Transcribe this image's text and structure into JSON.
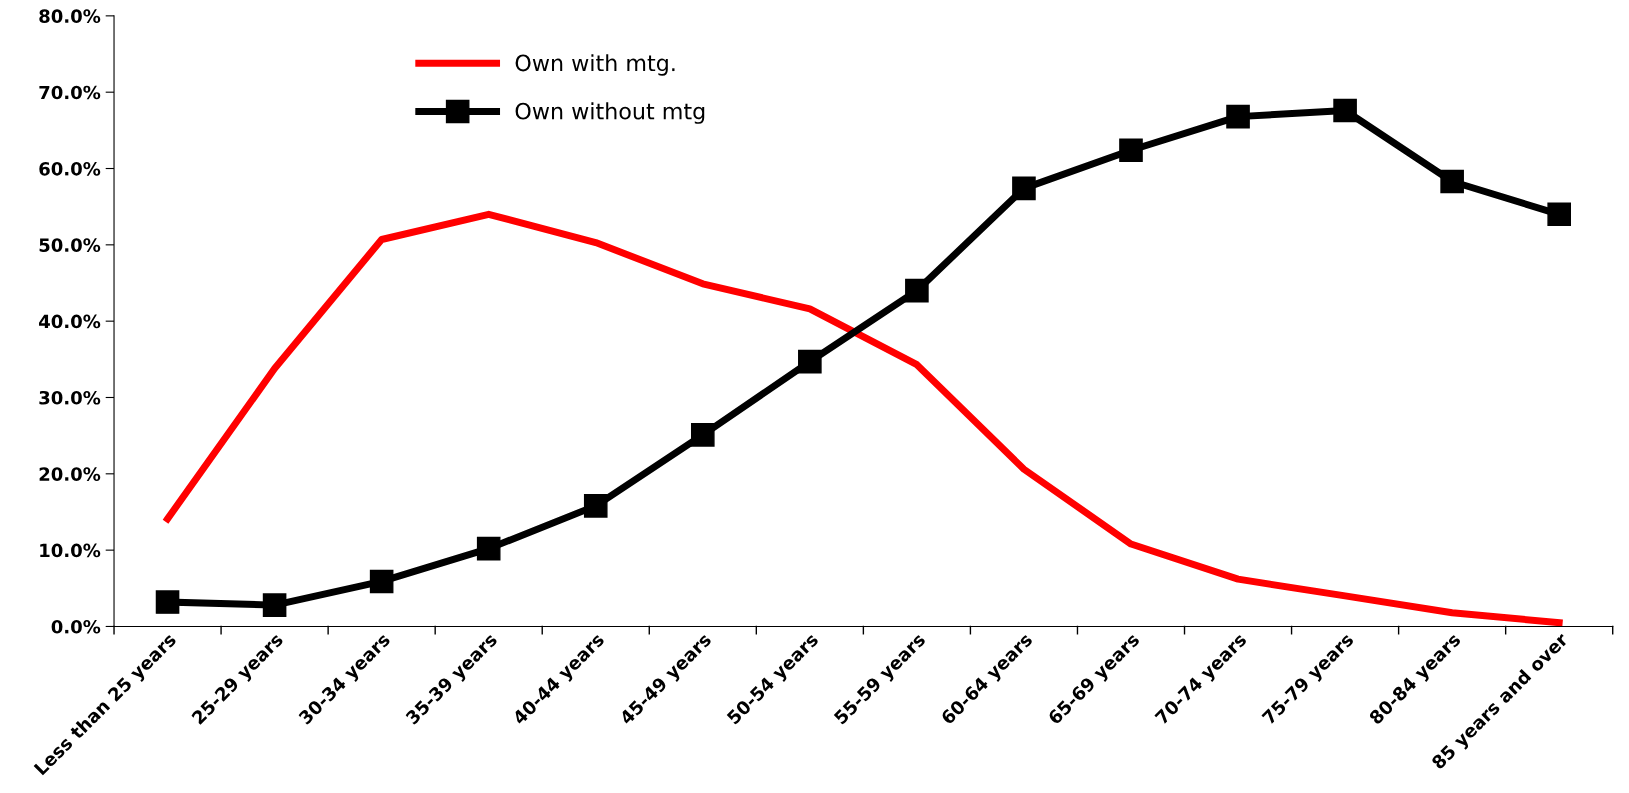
{
  "chart_data": {
    "type": "line",
    "categories": [
      "Less than 25 years",
      "25-29 years",
      "30-34 years",
      "35-39 years",
      "40-44 years",
      "45-49 years",
      "50-54 years",
      "55-59 years",
      "60-64 years",
      "65-69 years",
      "70-74 years",
      "75-79 years",
      "80-84 years",
      "85 years and over"
    ],
    "series": [
      {
        "name": "Own with mtg.",
        "color": "#ff0000",
        "marker": "none",
        "values": [
          14.1,
          33.8,
          50.7,
          54.0,
          50.3,
          44.9,
          41.6,
          34.3,
          20.6,
          10.8,
          6.2,
          4.0,
          1.8,
          0.5
        ]
      },
      {
        "name": "Own without mtg",
        "color": "#000000",
        "marker": "square",
        "values": [
          3.2,
          2.8,
          5.9,
          10.2,
          15.8,
          25.1,
          34.7,
          44.0,
          57.4,
          62.4,
          66.8,
          67.6,
          58.3,
          54.0
        ]
      }
    ],
    "ylim": [
      0,
      80
    ],
    "yticks": [
      {
        "value": 0,
        "label": "0.0%"
      },
      {
        "value": 10,
        "label": "10.0%"
      },
      {
        "value": 20,
        "label": "20.0%"
      },
      {
        "value": 30,
        "label": "30.0%"
      },
      {
        "value": 40,
        "label": "40.0%"
      },
      {
        "value": 50,
        "label": "50.0%"
      },
      {
        "value": 60,
        "label": "60.0%"
      },
      {
        "value": 70,
        "label": "70.0%"
      },
      {
        "value": 80,
        "label": "80.0%"
      }
    ],
    "grid": false,
    "legend": "top left"
  }
}
